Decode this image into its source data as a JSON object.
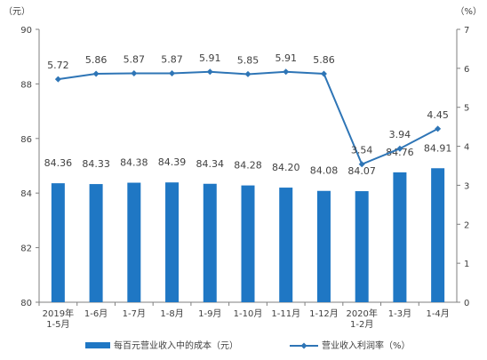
{
  "chart_data": {
    "type": "bar",
    "categories": [
      [
        "2019年",
        "1-5月"
      ],
      [
        "1-6月"
      ],
      [
        "1-7月"
      ],
      [
        "1-8月"
      ],
      [
        "1-9月"
      ],
      [
        "1-10月"
      ],
      [
        "1-11月"
      ],
      [
        "1-12月"
      ],
      [
        "2020年",
        "1-2月"
      ],
      [
        "1-3月"
      ],
      [
        "1-4月"
      ]
    ],
    "series": [
      {
        "name": "每百元营业收入中的成本（元）",
        "type": "bar",
        "axis": "left",
        "color": "#1f77c4",
        "values": [
          84.36,
          84.33,
          84.38,
          84.39,
          84.34,
          84.28,
          84.2,
          84.08,
          84.07,
          84.76,
          84.91
        ],
        "labels": [
          "84.36",
          "84.33",
          "84.38",
          "84.39",
          "84.34",
          "84.28",
          "84.20",
          "84.08",
          "84.07",
          "84.76",
          "84.91"
        ]
      },
      {
        "name": "营业收入利润率（%）",
        "type": "line",
        "axis": "right",
        "color": "#2e75b6",
        "values": [
          5.72,
          5.86,
          5.87,
          5.87,
          5.91,
          5.85,
          5.91,
          5.86,
          3.54,
          3.94,
          4.45
        ],
        "labels": [
          "5.72",
          "5.86",
          "5.87",
          "5.87",
          "5.91",
          "5.85",
          "5.91",
          "5.86",
          "3.54",
          "3.94",
          "4.45"
        ]
      }
    ],
    "left_axis": {
      "unit": "（元）",
      "ylim": [
        80,
        90
      ],
      "ticks": [
        "80",
        "82",
        "84",
        "86",
        "88",
        "90"
      ]
    },
    "right_axis": {
      "unit": "（%）",
      "ylim": [
        0,
        7
      ],
      "ticks": [
        "0",
        "1",
        "2",
        "3",
        "4",
        "5",
        "6",
        "7"
      ]
    },
    "grid": false,
    "legend_position": "bottom"
  }
}
